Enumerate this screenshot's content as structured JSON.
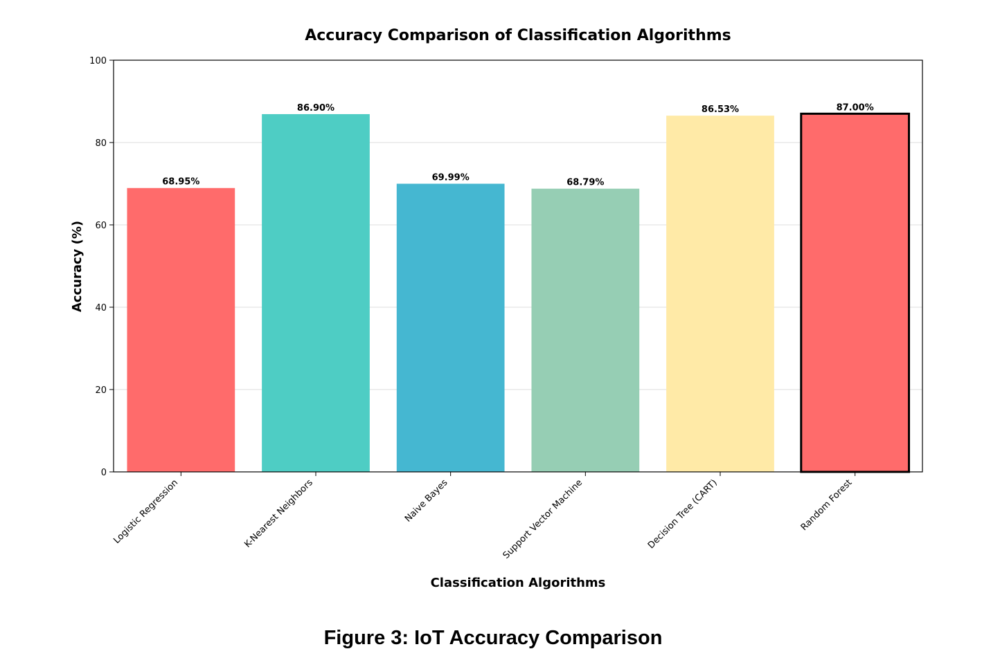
{
  "figure": {
    "caption": "Figure 3: IoT Accuracy Comparison"
  },
  "chart_data": {
    "type": "bar",
    "title": "Accuracy Comparison of Classification Algorithms",
    "xlabel": "Classification Algorithms",
    "ylabel": "Accuracy (%)",
    "ylim": [
      0,
      100
    ],
    "yticks": [
      0,
      20,
      40,
      60,
      80,
      100
    ],
    "grid": "horizontal",
    "categories": [
      "Logistic Regression",
      "K-Nearest Neighbors",
      "Naive Bayes",
      "Support Vector Machine",
      "Decision Tree (CART)",
      "Random Forest"
    ],
    "values": [
      68.95,
      86.9,
      69.99,
      68.79,
      86.53,
      87.0
    ],
    "value_labels": [
      "68.95%",
      "86.90%",
      "69.99%",
      "68.79%",
      "86.53%",
      "87.00%"
    ],
    "colors": [
      "#ff6b6b",
      "#4ecdc4",
      "#45b7d1",
      "#96ceb4",
      "#ffeaa7",
      "#ff6b6b"
    ],
    "highlighted": "Random Forest"
  }
}
